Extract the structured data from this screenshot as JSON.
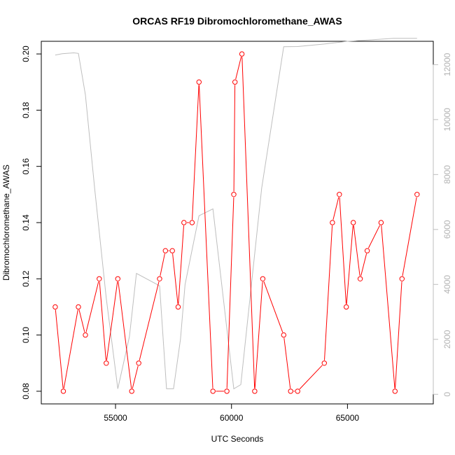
{
  "chart_data": {
    "type": "line",
    "title": "ORCAS RF19 Dibromochloromethane_AWAS",
    "xlabel": "UTC Seconds",
    "ylabel": "Dibromochloromethane_AWAS",
    "y2label": "",
    "xlim": [
      51800,
      68700
    ],
    "ylim": [
      0.0755,
      0.2045
    ],
    "y2lim": [
      -350,
      12850
    ],
    "x_ticks": [
      55000,
      60000,
      65000
    ],
    "y_ticks": [
      0.08,
      0.1,
      0.12,
      0.14,
      0.16,
      0.18,
      0.2
    ],
    "y_tick_labels": [
      "0.08",
      "0.10",
      "0.12",
      "0.14",
      "0.16",
      "0.18",
      "0.20"
    ],
    "y2_ticks": [
      0,
      2000,
      4000,
      6000,
      8000,
      10000,
      12000
    ],
    "grid": false,
    "colors": {
      "primary": "#ff0000",
      "secondary": "#bebebe"
    },
    "series": [
      {
        "axis": "left",
        "style": "line+circles",
        "x": [
          52400,
          52750,
          53400,
          53700,
          54300,
          54600,
          55100,
          55700,
          56000,
          56900,
          57150,
          57450,
          57700,
          57950,
          58300,
          58600,
          59200,
          59800,
          60100,
          60150,
          60450,
          61000,
          61350,
          62250,
          62550,
          62850,
          64000,
          64350,
          64650,
          64950,
          65250,
          65550,
          65850,
          66450,
          67050,
          67350,
          68000
        ],
        "y": [
          0.11,
          0.08,
          0.11,
          0.1,
          0.12,
          0.09,
          0.12,
          0.08,
          0.09,
          0.12,
          0.13,
          0.13,
          0.11,
          0.14,
          0.14,
          0.19,
          0.08,
          0.08,
          0.15,
          0.19,
          0.2,
          0.08,
          0.12,
          0.1,
          0.08,
          0.08,
          0.09,
          0.14,
          0.15,
          0.11,
          0.14,
          0.12,
          0.13,
          0.14,
          0.08,
          0.12,
          0.15
        ]
      },
      {
        "axis": "right",
        "style": "line",
        "x": [
          52400,
          52700,
          53200,
          53400,
          53700,
          54100,
          54600,
          55100,
          55600,
          55900,
          56900,
          57200,
          57500,
          57800,
          58000,
          58600,
          59200,
          60100,
          60400,
          61300,
          62250,
          62850,
          64000,
          65000,
          66000,
          67000,
          68000
        ],
        "y": [
          12350,
          12400,
          12430,
          12410,
          10900,
          7500,
          3500,
          200,
          2100,
          4400,
          3950,
          200,
          200,
          2000,
          4000,
          6500,
          6750,
          200,
          350,
          7500,
          12650,
          12660,
          12750,
          12850,
          12900,
          12960,
          12960
        ]
      }
    ]
  }
}
